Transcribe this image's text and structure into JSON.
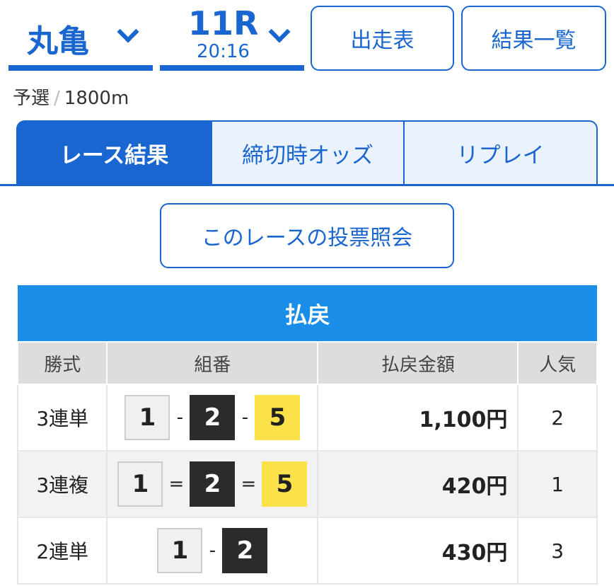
{
  "header": {
    "venue": "丸亀",
    "race": "11R",
    "time": "20:16",
    "buttons": [
      "出走表",
      "結果一覧"
    ]
  },
  "subtitle": {
    "grade": "予選",
    "separator": "/",
    "distance": "1800m"
  },
  "tabs": [
    {
      "label": "レース結果",
      "active": true
    },
    {
      "label": "締切時オッズ"
    },
    {
      "label": "リプレイ"
    }
  ],
  "vote_button": "このレースの投票照会",
  "payout": {
    "title": "払戻",
    "columns": [
      "勝式",
      "組番",
      "払戻金額",
      "人気"
    ],
    "rows": [
      {
        "type": "3連単",
        "combo": [
          "1",
          "2",
          "5"
        ],
        "sep": "-",
        "amount": "1,100円",
        "popularity": "2"
      },
      {
        "type": "3連複",
        "combo": [
          "1",
          "2",
          "5"
        ],
        "sep": "=",
        "amount": "420円",
        "popularity": "1"
      },
      {
        "type": "2連単",
        "combo": [
          "1",
          "2"
        ],
        "sep": "-",
        "amount": "430円",
        "popularity": "3"
      }
    ]
  },
  "colors": {
    "accent": "#1a66d0",
    "band": "#1a8de8",
    "boat1": "#f0f0f0",
    "boat2": "#2b2b2b",
    "boat5": "#fbe14a"
  }
}
